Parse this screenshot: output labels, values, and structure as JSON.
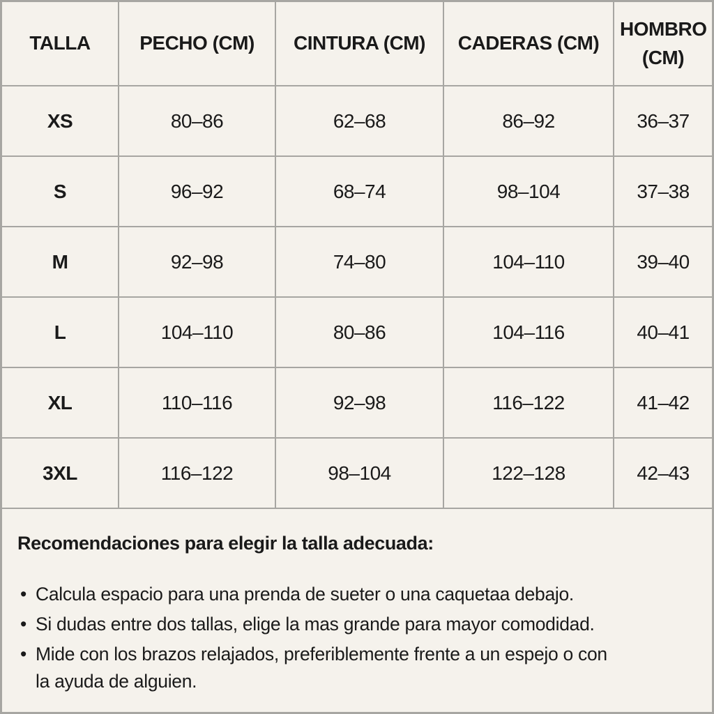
{
  "table": {
    "headers": {
      "talla": "TALLA",
      "pecho": "PECHO (CM)",
      "cintura": "CINTURA (CM)",
      "caderas": "CADERAS (CM)",
      "hombro": "HOMBRO (CM)"
    },
    "rows": [
      {
        "size": "XS",
        "pecho": "80–86",
        "cintura": "62–68",
        "caderas": "86–92",
        "hombro": "36–37"
      },
      {
        "size": "S",
        "pecho": "96–92",
        "cintura": "68–74",
        "caderas": "98–104",
        "hombro": "37–38"
      },
      {
        "size": "M",
        "pecho": "92–98",
        "cintura": "74–80",
        "caderas": "104–110",
        "hombro": "39–40"
      },
      {
        "size": "L",
        "pecho": "104–110",
        "cintura": "80–86",
        "caderas": "104–116",
        "hombro": "40–41"
      },
      {
        "size": "XL",
        "pecho": "110–116",
        "cintura": "92–98",
        "caderas": "116–122",
        "hombro": "41–42"
      },
      {
        "size": "3XL",
        "pecho": "116–122",
        "cintura": "98–104",
        "caderas": "122–128",
        "hombro": "42–43"
      }
    ]
  },
  "recommendations": {
    "title": "Recomendaciones para elegir la talla adecuada:",
    "bullet_char": "•",
    "items": [
      "Calcula espacio para una prenda de sueter o una caquetaa debajo.",
      "Si dudas entre dos tallas, elige la mas grande para mayor comodidad.",
      "Mide con los brazos relajados, preferiblemente frente a un espejo o con la ayuda de alguien."
    ]
  },
  "colors": {
    "background": "#f5f2ec",
    "grid_line": "#a7a6a2",
    "text": "#1a1a1a"
  }
}
